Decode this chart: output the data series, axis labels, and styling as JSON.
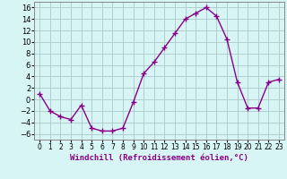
{
  "x": [
    0,
    1,
    2,
    3,
    4,
    5,
    6,
    7,
    8,
    9,
    10,
    11,
    12,
    13,
    14,
    15,
    16,
    17,
    18,
    19,
    20,
    21,
    22,
    23
  ],
  "y": [
    1,
    -2,
    -3,
    -3.5,
    -1,
    -5,
    -5.5,
    -5.5,
    -5,
    -0.5,
    4.5,
    6.5,
    9,
    11.5,
    14,
    15,
    16,
    14.5,
    10.5,
    3,
    -1.5,
    -1.5,
    3,
    3.5
  ],
  "line_color": "#880088",
  "marker": "+",
  "markersize": 4,
  "linewidth": 1.0,
  "markeredgewidth": 1.0,
  "xlabel": "Windchill (Refroidissement éolien,°C)",
  "xlabel_fontsize": 6.5,
  "ylabel_ticks": [
    -6,
    -4,
    -2,
    0,
    2,
    4,
    6,
    8,
    10,
    12,
    14,
    16
  ],
  "xtick_labels": [
    "0",
    "1",
    "2",
    "3",
    "4",
    "5",
    "6",
    "7",
    "8",
    "9",
    "10",
    "11",
    "12",
    "13",
    "14",
    "15",
    "16",
    "17",
    "18",
    "19",
    "20",
    "21",
    "22",
    "23"
  ],
  "ylim": [
    -7,
    17
  ],
  "xlim": [
    -0.5,
    23.5
  ],
  "bg_color": "#d8f5f5",
  "grid_color": "#aac8c8",
  "ytick_fontsize": 6,
  "xtick_fontsize": 5.5,
  "xlabel_color": "#880088"
}
